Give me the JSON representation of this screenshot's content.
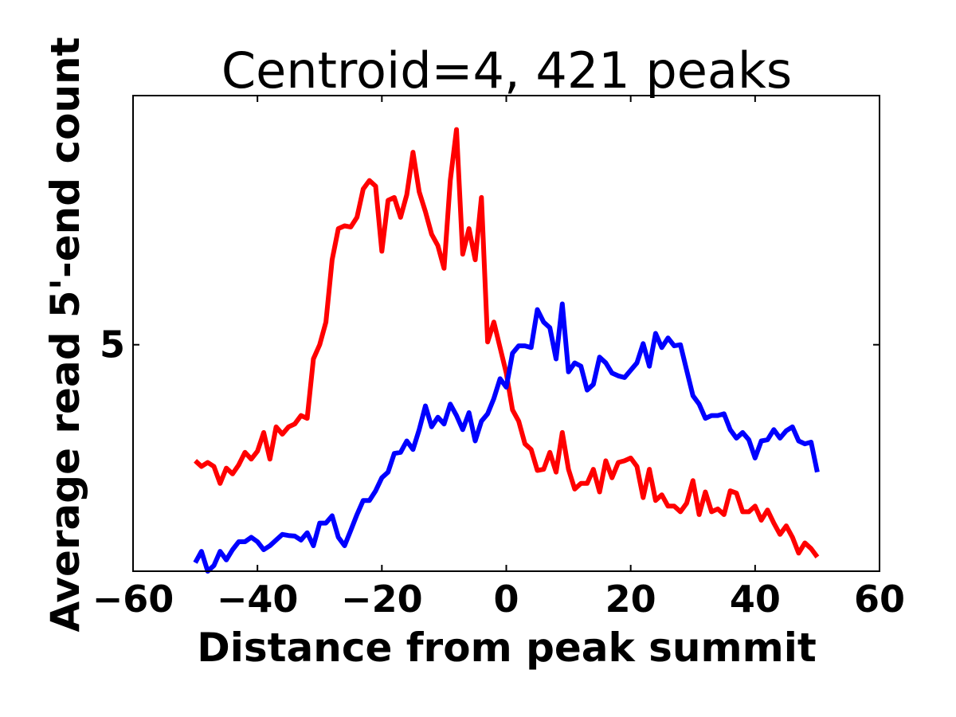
{
  "chart_data": {
    "type": "line",
    "title": "Centroid=4, 421 peaks",
    "xlabel": "Distance from peak summit",
    "ylabel": "Average read 5'-end count",
    "xlim": [
      -60,
      60
    ],
    "ylim": [
      1.0,
      9.4
    ],
    "xticks": [
      -60,
      -40,
      -20,
      0,
      20,
      40,
      60
    ],
    "xtick_labels": [
      "−60",
      "−40",
      "−20",
      "0",
      "20",
      "40",
      "60"
    ],
    "yticks": [
      5
    ],
    "ytick_labels": [
      "5"
    ],
    "grid": false,
    "series": [
      {
        "color": "#ff0000",
        "x": [
          -50,
          -49,
          -48,
          -47,
          -46,
          -45,
          -44,
          -43,
          -42,
          -41,
          -40,
          -39,
          -38,
          -37,
          -36,
          -35,
          -34,
          -33,
          -32,
          -31,
          -30,
          -29,
          -28,
          -27,
          -26,
          -25,
          -24,
          -23,
          -22,
          -21,
          -20,
          -19,
          -18,
          -17,
          -16,
          -15,
          -14,
          -13,
          -12,
          -11,
          -10,
          -9,
          -8,
          -7,
          -6,
          -5,
          -4,
          -3,
          -2,
          -1,
          0,
          1,
          2,
          3,
          4,
          5,
          6,
          7,
          8,
          9,
          10,
          11,
          12,
          13,
          14,
          15,
          16,
          17,
          18,
          19,
          20,
          21,
          22,
          23,
          24,
          25,
          26,
          27,
          28,
          29,
          30,
          31,
          32,
          33,
          34,
          35,
          36,
          37,
          38,
          39,
          40,
          41,
          42,
          43,
          44,
          45,
          46,
          47,
          48,
          49,
          50
        ],
        "y": [
          2.95,
          2.85,
          2.92,
          2.85,
          2.55,
          2.82,
          2.72,
          2.88,
          3.1,
          2.98,
          3.12,
          3.45,
          2.98,
          3.55,
          3.42,
          3.55,
          3.6,
          3.75,
          3.7,
          4.75,
          5.0,
          5.4,
          6.5,
          7.05,
          7.1,
          7.08,
          7.25,
          7.75,
          7.9,
          7.8,
          6.65,
          7.55,
          7.6,
          7.25,
          7.65,
          8.4,
          7.7,
          7.35,
          6.95,
          6.75,
          6.35,
          7.9,
          8.8,
          6.6,
          7.05,
          6.5,
          7.6,
          5.05,
          5.4,
          4.95,
          4.5,
          3.85,
          3.65,
          3.25,
          3.15,
          2.78,
          2.8,
          3.1,
          2.75,
          3.45,
          2.8,
          2.45,
          2.55,
          2.55,
          2.8,
          2.4,
          2.95,
          2.65,
          2.92,
          2.95,
          3.0,
          2.85,
          2.3,
          2.8,
          2.25,
          2.35,
          2.15,
          2.15,
          2.05,
          2.2,
          2.6,
          2.0,
          2.4,
          2.05,
          2.1,
          2.0,
          2.42,
          2.38,
          2.05,
          2.05,
          2.15,
          1.9,
          2.08,
          1.85,
          1.65,
          1.8,
          1.6,
          1.32,
          1.5,
          1.4,
          1.25
        ]
      },
      {
        "color": "#0000ff",
        "x": [
          -50,
          -49,
          -48,
          -47,
          -46,
          -45,
          -44,
          -43,
          -42,
          -41,
          -40,
          -39,
          -38,
          -37,
          -36,
          -35,
          -34,
          -33,
          -32,
          -31,
          -30,
          -29,
          -28,
          -27,
          -26,
          -25,
          -24,
          -23,
          -22,
          -21,
          -20,
          -19,
          -18,
          -17,
          -16,
          -15,
          -14,
          -13,
          -12,
          -11,
          -10,
          -9,
          -8,
          -7,
          -6,
          -5,
          -4,
          -3,
          -2,
          -1,
          0,
          1,
          2,
          3,
          4,
          5,
          6,
          7,
          8,
          9,
          10,
          11,
          12,
          13,
          14,
          15,
          16,
          17,
          18,
          19,
          20,
          21,
          22,
          23,
          24,
          25,
          26,
          27,
          28,
          29,
          30,
          31,
          32,
          33,
          34,
          35,
          36,
          37,
          38,
          39,
          40,
          41,
          42,
          43,
          44,
          45,
          46,
          47,
          48,
          49,
          50
        ],
        "y": [
          1.15,
          1.35,
          1.0,
          1.1,
          1.35,
          1.2,
          1.38,
          1.52,
          1.52,
          1.6,
          1.52,
          1.38,
          1.45,
          1.55,
          1.65,
          1.63,
          1.62,
          1.55,
          1.68,
          1.45,
          1.85,
          1.85,
          1.98,
          1.6,
          1.45,
          1.72,
          2.0,
          2.25,
          2.25,
          2.42,
          2.65,
          2.75,
          3.08,
          3.1,
          3.3,
          3.15,
          3.5,
          3.92,
          3.55,
          3.72,
          3.6,
          3.95,
          3.75,
          3.5,
          3.8,
          3.3,
          3.65,
          3.78,
          4.05,
          4.4,
          4.25,
          4.85,
          4.98,
          4.98,
          4.95,
          5.62,
          5.4,
          5.3,
          4.75,
          5.72,
          4.52,
          4.68,
          4.62,
          4.2,
          4.3,
          4.78,
          4.68,
          4.5,
          4.45,
          4.42,
          4.55,
          4.68,
          5.02,
          4.62,
          5.2,
          4.95,
          5.12,
          4.98,
          5.0,
          4.55,
          4.1,
          3.95,
          3.7,
          3.75,
          3.75,
          3.78,
          3.5,
          3.35,
          3.45,
          3.32,
          3.0,
          3.3,
          3.32,
          3.5,
          3.35,
          3.48,
          3.55,
          3.3,
          3.25,
          3.28,
          2.75
        ]
      }
    ]
  }
}
